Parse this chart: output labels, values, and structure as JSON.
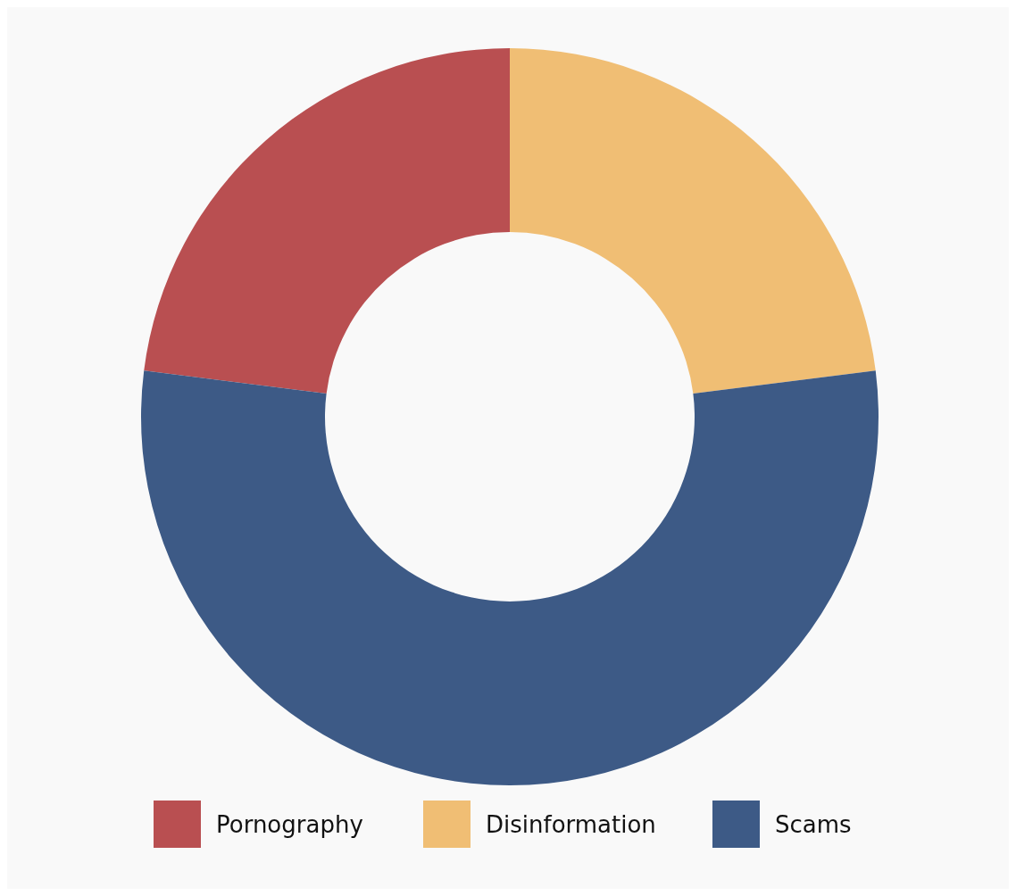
{
  "chart_data": {
    "type": "donut",
    "categories": [
      "Pornography",
      "Disinformation",
      "Scams"
    ],
    "values": [
      23,
      23,
      54
    ],
    "colors": [
      "#b94f51",
      "#f0be74",
      "#3d5a86"
    ],
    "legend": "bottom"
  }
}
